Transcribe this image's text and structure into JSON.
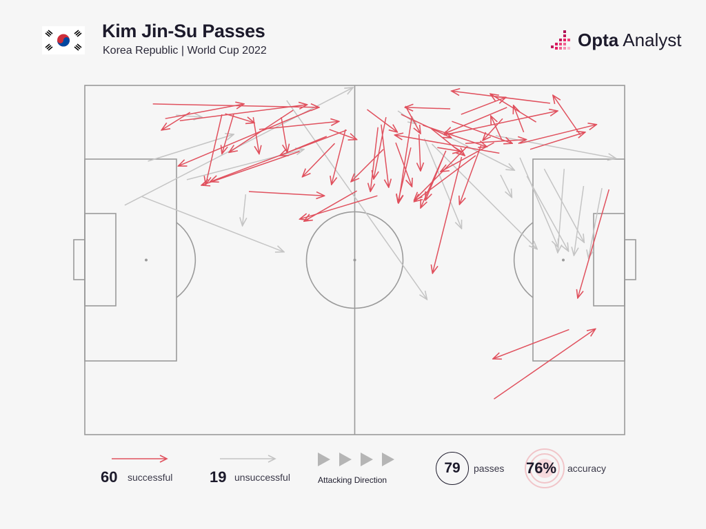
{
  "header": {
    "title": "Kim Jin-Su Passes",
    "subtitle": "Korea Republic | World Cup 2022",
    "brand_opta": "Opta",
    "brand_analyst": "Analyst"
  },
  "legend": {
    "successful_count": "60",
    "successful_label": "successful",
    "unsuccessful_count": "19",
    "unsuccessful_label": "unsuccessful",
    "direction_label": "Attacking Direction",
    "passes_count": "79",
    "passes_label": "passes",
    "accuracy_value": "76%",
    "accuracy_label": "accuracy"
  },
  "colors": {
    "successful": "#e0505d",
    "unsuccessful": "#c4c4c4",
    "pitch_lines": "#9a9a9a",
    "background": "#f6f6f6",
    "brand_accent": "#c2185b"
  },
  "icons": [
    "south-korea-flag-icon",
    "opta-analyst-logo-icon",
    "attacking-direction-triangle-icon"
  ],
  "chart_data": {
    "type": "pass-map",
    "x_unit": "pitch length %, 0 = own goal line, 100 = opposition goal line (attacking left to right)",
    "y_unit": "pitch width %, 0 = top touchline, 100 = bottom touchline",
    "xlim": [
      0,
      100
    ],
    "ylim": [
      0,
      100
    ],
    "successful": [
      [
        12.6,
        5.3,
        43.4,
        6.3
      ],
      [
        19.5,
        7.7,
        14.2,
        12.8
      ],
      [
        14.9,
        9.5,
        29.5,
        5.3
      ],
      [
        41.9,
        7.1,
        17.3,
        23.1
      ],
      [
        26.0,
        8.1,
        31.4,
        10.7
      ],
      [
        38.6,
        7.1,
        26.7,
        19.2
      ],
      [
        17.6,
        10.1,
        41.2,
        5.5
      ],
      [
        32.3,
        12.6,
        47.1,
        10.3
      ],
      [
        25.4,
        8.3,
        22.4,
        28.4
      ],
      [
        27.6,
        8.1,
        25.4,
        19.6
      ],
      [
        31.2,
        9.1,
        32.3,
        19.6
      ],
      [
        36.4,
        9.1,
        37.5,
        19.2
      ],
      [
        48.5,
        12.8,
        23.2,
        27.6
      ],
      [
        45.3,
        12.6,
        50.4,
        15.5
      ],
      [
        48.3,
        12.6,
        45.7,
        28.4
      ],
      [
        52.3,
        6.9,
        57.9,
        13.4
      ],
      [
        59.4,
        5.9,
        62.2,
        13.8
      ],
      [
        55.8,
        9.1,
        53.5,
        26.8
      ],
      [
        58.6,
        8.3,
        67.9,
        15.0
      ],
      [
        60.6,
        8.9,
        58.1,
        33.7
      ],
      [
        54.9,
        11.2,
        56.3,
        29.2
      ],
      [
        62.6,
        11.4,
        74.5,
        17.6
      ],
      [
        61.9,
        14.0,
        62.2,
        24.5
      ],
      [
        64.2,
        12.4,
        70.4,
        20.1
      ],
      [
        68.0,
        10.3,
        79.2,
        16.6
      ],
      [
        66.5,
        14.2,
        87.6,
        7.3
      ],
      [
        78.2,
        6.3,
        66.6,
        13.8
      ],
      [
        86.2,
        5.1,
        67.9,
        1.6
      ],
      [
        83.6,
        10.5,
        75.1,
        2.4
      ],
      [
        77.4,
        9.5,
        73.7,
        15.8
      ],
      [
        81.3,
        13.4,
        79.4,
        5.7
      ],
      [
        69.7,
        8.3,
        78.0,
        3.4
      ],
      [
        91.8,
        14.2,
        86.7,
        2.8
      ],
      [
        80.6,
        16.6,
        94.8,
        11.2
      ],
      [
        82.5,
        18.3,
        92.7,
        13.4
      ],
      [
        70.5,
        16.6,
        81.8,
        15.5
      ],
      [
        77.3,
        15.8,
        75.2,
        8.7
      ],
      [
        75.8,
        16.4,
        65.9,
        24.7
      ],
      [
        70.9,
        17.4,
        61.0,
        32.9
      ],
      [
        66.9,
        18.7,
        62.2,
        35.1
      ],
      [
        73.4,
        17.2,
        69.4,
        34.1
      ],
      [
        66.3,
        20.9,
        63.1,
        32.9
      ],
      [
        65.3,
        17.8,
        69.7,
        18.9
      ],
      [
        72.4,
        20.1,
        61.0,
        33.3
      ],
      [
        76.8,
        19.4,
        57.4,
        14.2
      ],
      [
        69.8,
        20.5,
        64.4,
        53.8
      ],
      [
        60.4,
        17.8,
        58.0,
        33.5
      ],
      [
        55.3,
        18.3,
        49.3,
        27.6
      ],
      [
        44.8,
        14.6,
        36.1,
        20.1
      ],
      [
        39.8,
        18.9,
        21.6,
        28.6
      ],
      [
        46.3,
        16.6,
        40.3,
        26.2
      ],
      [
        30.4,
        30.4,
        44.4,
        31.6
      ],
      [
        50.4,
        30.2,
        40.6,
        38.9
      ],
      [
        54.2,
        31.6,
        39.8,
        38.3
      ],
      [
        54.3,
        12.0,
        52.9,
        30.4
      ],
      [
        57.6,
        16.4,
        60.6,
        29.0
      ],
      [
        97.1,
        29.8,
        91.3,
        60.9
      ],
      [
        89.7,
        69.9,
        75.6,
        78.3
      ],
      [
        75.8,
        89.8,
        94.6,
        69.7
      ],
      [
        67.7,
        6.7,
        59.3,
        6.3
      ]
    ],
    "unsuccessful": [
      [
        16.9,
        8.5,
        21.7,
        9.1
      ],
      [
        11.7,
        21.7,
        27.6,
        14.0
      ],
      [
        7.4,
        34.3,
        49.7,
        0.6
      ],
      [
        10.5,
        31.8,
        36.9,
        47.7
      ],
      [
        18.9,
        27.0,
        40.6,
        18.3
      ],
      [
        29.8,
        31.2,
        29.2,
        40.2
      ],
      [
        37.4,
        4.3,
        63.4,
        61.3
      ],
      [
        58.0,
        7.3,
        61.4,
        11.0
      ],
      [
        64.2,
        12.2,
        79.6,
        24.3
      ],
      [
        62.9,
        15.2,
        69.8,
        41.0
      ],
      [
        64.3,
        16.8,
        83.8,
        46.9
      ],
      [
        76.1,
        14.4,
        98.4,
        20.9
      ],
      [
        80.6,
        20.7,
        87.7,
        46.4
      ],
      [
        88.8,
        23.9,
        87.6,
        47.9
      ],
      [
        81.9,
        26.0,
        89.6,
        47.5
      ],
      [
        92.4,
        28.8,
        90.6,
        48.7
      ],
      [
        95.8,
        29.4,
        93.3,
        49.5
      ],
      [
        77.0,
        25.6,
        79.1,
        32.1
      ],
      [
        85.1,
        23.9,
        92.5,
        45.0
      ]
    ]
  }
}
